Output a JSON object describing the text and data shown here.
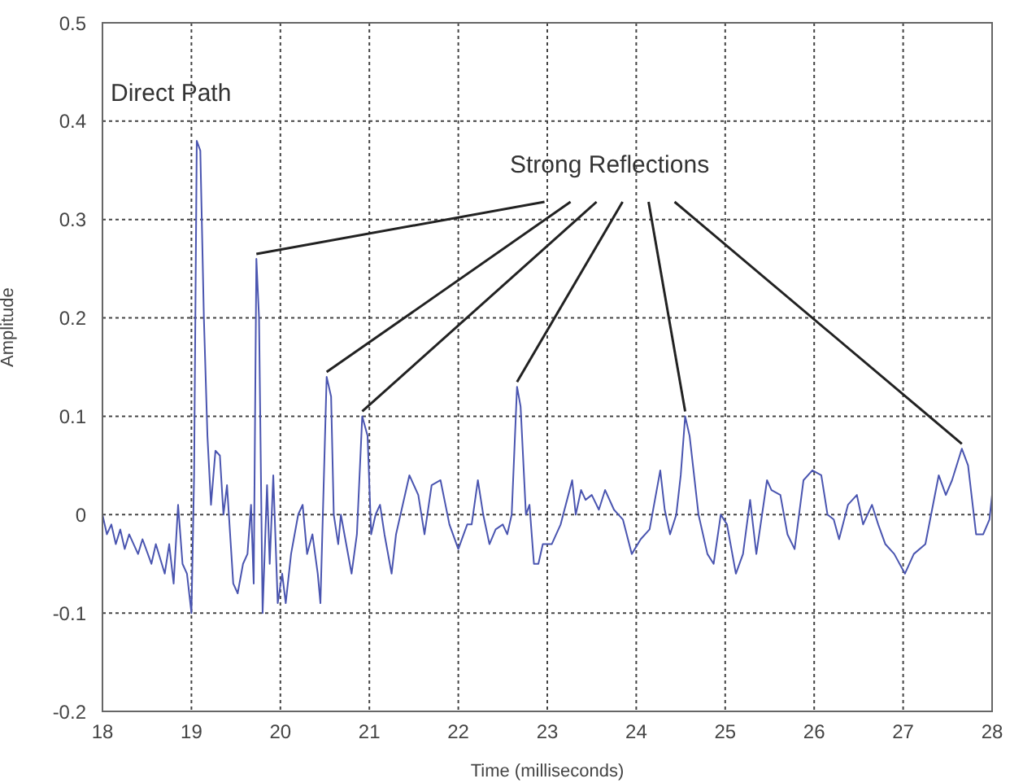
{
  "chart_data": {
    "type": "line",
    "xlabel": "Time (milliseconds)",
    "ylabel": "Amplitude",
    "annotations": [
      "Direct Path",
      {
        "text": "Strong Reflections",
        "x": 19.73,
        "y": 0.26
      }
    ],
    "xlim": [
      18,
      28
    ],
    "ylim": [
      -0.2,
      0.5
    ],
    "xticks": [
      18,
      19,
      20,
      21,
      22,
      23,
      24,
      25,
      26,
      27,
      28
    ],
    "yticks": [
      -0.2,
      -0.1,
      0,
      0.1,
      0.2,
      0.3,
      0.4,
      0.5
    ],
    "grid": true,
    "legend": false,
    "marker": "none",
    "line_style": "solid",
    "series": [
      {
        "color": "#4a55b0",
        "x": [
          18,
          18.05,
          18.1,
          18.15,
          18.2,
          18.25,
          18.3,
          18.4,
          18.45,
          18.55,
          18.6,
          18.7,
          18.75,
          18.8,
          18.85,
          18.9,
          18.95,
          19,
          19.03,
          19.06,
          19.1,
          19.14,
          19.18,
          19.22,
          19.27,
          19.32,
          19.36,
          19.4,
          19.47,
          19.52,
          19.58,
          19.63,
          19.67,
          19.7,
          19.73,
          19.76,
          19.8,
          19.85,
          19.88,
          19.92,
          19.97,
          20.02,
          20.06,
          20.12,
          20.2,
          20.25,
          20.3,
          20.36,
          20.42,
          20.45,
          20.52,
          20.57,
          20.6,
          20.65,
          20.68,
          20.72,
          20.8,
          20.86,
          20.92,
          20.98,
          21.02,
          21.07,
          21.12,
          21.17,
          21.25,
          21.3,
          21.45,
          21.55,
          21.62,
          21.7,
          21.8,
          21.9,
          22,
          22.1,
          22.15,
          22.22,
          22.28,
          22.35,
          22.42,
          22.5,
          22.55,
          22.6,
          22.66,
          22.7,
          22.76,
          22.8,
          22.85,
          22.9,
          22.95,
          23.05,
          23.15,
          23.28,
          23.32,
          23.38,
          23.43,
          23.5,
          23.58,
          23.65,
          23.75,
          23.85,
          23.95,
          24.05,
          24.15,
          24.27,
          24.32,
          24.38,
          24.45,
          24.5,
          24.55,
          24.6,
          24.7,
          24.8,
          24.87,
          24.95,
          25.02,
          25.12,
          25.2,
          25.28,
          25.35,
          25.47,
          25.52,
          25.62,
          25.7,
          25.78,
          25.88,
          25.98,
          26.08,
          26.15,
          26.22,
          26.28,
          26.38,
          26.48,
          26.55,
          26.65,
          26.72,
          26.8,
          26.9,
          27.02,
          27.12,
          27.25,
          27.4,
          27.48,
          27.55,
          27.66,
          27.73,
          27.82,
          27.9,
          27.97,
          28
        ],
        "values": [
          0,
          -0.02,
          -0.01,
          -0.03,
          -0.015,
          -0.035,
          -0.02,
          -0.04,
          -0.025,
          -0.05,
          -0.03,
          -0.06,
          -0.03,
          -0.07,
          0.01,
          -0.05,
          -0.06,
          -0.1,
          0.04,
          0.38,
          0.37,
          0.2,
          0.08,
          0.01,
          0.065,
          0.06,
          0,
          0.03,
          -0.07,
          -0.08,
          -0.05,
          -0.04,
          0.01,
          -0.07,
          0.26,
          0.2,
          -0.1,
          0.03,
          -0.05,
          0.04,
          -0.09,
          -0.06,
          -0.09,
          -0.04,
          0,
          0.01,
          -0.04,
          -0.02,
          -0.06,
          -0.09,
          0.14,
          0.12,
          0,
          -0.03,
          0,
          -0.02,
          -0.06,
          -0.02,
          0.1,
          0.08,
          -0.02,
          0,
          0.01,
          -0.02,
          -0.06,
          -0.02,
          0.04,
          0.02,
          -0.02,
          0.03,
          0.035,
          -0.01,
          -0.035,
          -0.01,
          -0.01,
          0.035,
          0,
          -0.03,
          -0.015,
          -0.01,
          -0.02,
          0,
          0.13,
          0.11,
          0,
          0.01,
          -0.05,
          -0.05,
          -0.03,
          -0.03,
          -0.01,
          0.035,
          0,
          0.025,
          0.015,
          0.02,
          0.005,
          0.025,
          0.005,
          -0.005,
          -0.04,
          -0.025,
          -0.015,
          0.045,
          0.005,
          -0.02,
          0,
          0.04,
          0.1,
          0.08,
          0,
          -0.04,
          -0.05,
          0,
          -0.01,
          -0.06,
          -0.04,
          0.015,
          -0.04,
          0.035,
          0.025,
          0.02,
          -0.02,
          -0.035,
          0.035,
          0.045,
          0.04,
          0,
          -0.005,
          -0.025,
          0.01,
          0.02,
          -0.01,
          0.01,
          -0.01,
          -0.03,
          -0.04,
          -0.06,
          -0.04,
          -0.03,
          0.04,
          0.02,
          0.035,
          0.067,
          0.05,
          -0.02,
          -0.02,
          -0.005,
          0.02
        ]
      }
    ]
  }
}
